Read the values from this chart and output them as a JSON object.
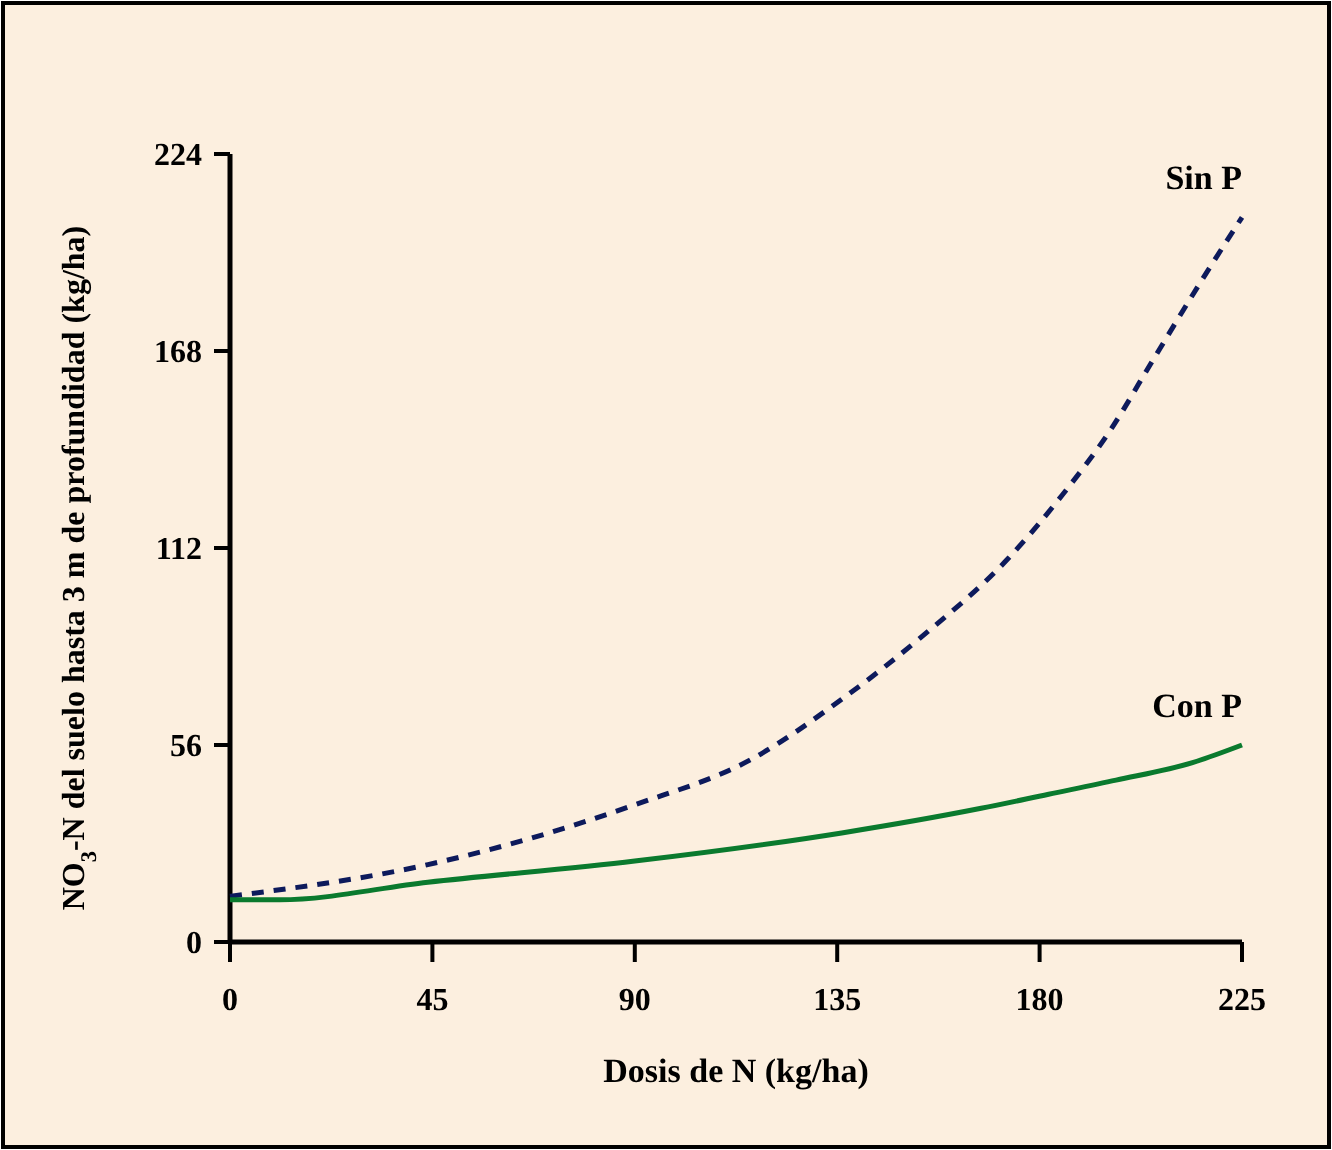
{
  "chart_data": {
    "type": "line",
    "xlabel": "Dosis de N (kg/ha)",
    "ylabel": "NO$_{3}$-N del suelo hasta 3 m de profundidad (kg/ha)",
    "xlim": [
      0,
      225
    ],
    "ylim": [
      0,
      224
    ],
    "xticks": [
      0,
      45,
      90,
      135,
      180,
      225
    ],
    "yticks": [
      0,
      56,
      112,
      168,
      224
    ],
    "grid": false,
    "series": [
      {
        "name": "Sin P",
        "color": "#0d1a5c",
        "line_style": "dashed",
        "x": [
          0,
          44,
          90,
          116,
          136,
          154,
          173,
          185,
          196,
          205,
          216,
          225
        ],
        "values": [
          13,
          22,
          39,
          52,
          69,
          87,
          109,
          127,
          146,
          165,
          188,
          206
        ]
      },
      {
        "name": "Con P",
        "color": "#0a7a2e",
        "line_style": "solid",
        "x": [
          0,
          11,
          44,
          90,
          136,
          167,
          182,
          197,
          214,
          225
        ],
        "values": [
          12,
          12,
          17,
          23,
          31,
          38,
          42,
          46,
          51,
          56
        ]
      }
    ]
  }
}
